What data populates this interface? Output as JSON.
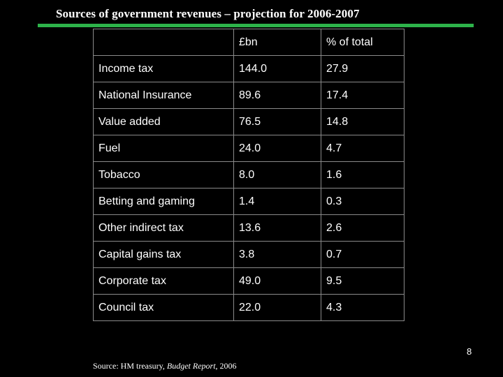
{
  "title": "Sources of government revenues – projection for 2006-2007",
  "colors": {
    "background": "#000000",
    "text": "#ffffff",
    "title_rule": "#2db34a",
    "table_border": "#8a8a8a"
  },
  "table": {
    "headers": [
      "",
      "£bn",
      "% of total"
    ],
    "rows": [
      {
        "name": "Income tax",
        "bn": "144.0",
        "pct": "27.9"
      },
      {
        "name": "National Insurance",
        "bn": "89.6",
        "pct": "17.4"
      },
      {
        "name": "Value added",
        "bn": "76.5",
        "pct": "14.8"
      },
      {
        "name": "Fuel",
        "bn": "24.0",
        "pct": "4.7"
      },
      {
        "name": "Tobacco",
        "bn": "8.0",
        "pct": "1.6"
      },
      {
        "name": "Betting and gaming",
        "bn": "1.4",
        "pct": "0.3"
      },
      {
        "name": "Other indirect tax",
        "bn": "13.6",
        "pct": "2.6"
      },
      {
        "name": "Capital gains tax",
        "bn": "3.8",
        "pct": "0.7"
      },
      {
        "name": "Corporate tax",
        "bn": "49.0",
        "pct": "9.5"
      },
      {
        "name": "Council tax",
        "bn": "22.0",
        "pct": "4.3"
      }
    ]
  },
  "page_number": "8",
  "source": {
    "prefix": "Source: HM treasury, ",
    "publication": "Budget Report",
    "suffix": ", 2006"
  }
}
